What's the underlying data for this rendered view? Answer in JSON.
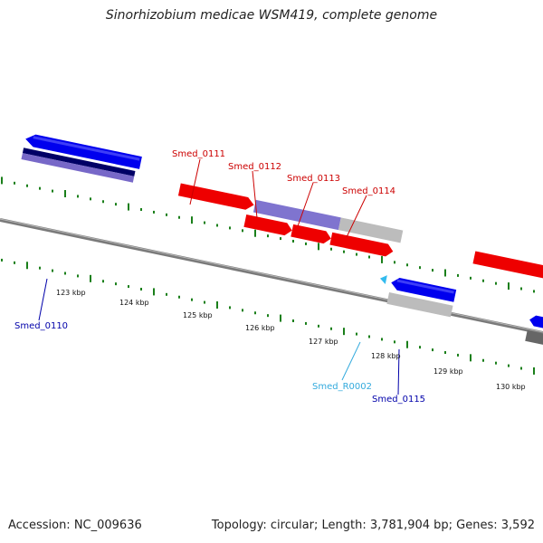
{
  "title": "Sinorhizobium medicae WSM419, complete genome",
  "footer": {
    "accession": "Accession: NC_009636",
    "summary": "Topology: circular; Length: 3,781,904 bp; Genes: 3,592"
  },
  "colors": {
    "forward_gene": "#ff0000",
    "reverse_gene": "#0000ee",
    "cds_forward": "#8b7fd0",
    "cds_reverse": "#6a5acd",
    "pseudo_gray": "#bdbdbd",
    "backbone": "#777777",
    "tick": "#1a7f1a",
    "label_red": "#cc0000",
    "label_blue": "#0000aa",
    "label_cyan": "#33aadd"
  },
  "ticks": [
    {
      "label": "123 kbp"
    },
    {
      "label": "124 kbp"
    },
    {
      "label": "125 kbp"
    },
    {
      "label": "126 kbp"
    },
    {
      "label": "127 kbp"
    },
    {
      "label": "128 kbp"
    },
    {
      "label": "129 kbp"
    },
    {
      "label": "130 kbp"
    }
  ],
  "gene_labels": [
    {
      "label": "Smed_0111"
    },
    {
      "label": "Smed_0112"
    },
    {
      "label": "Smed_0113"
    },
    {
      "label": "Smed_0114"
    },
    {
      "label": "Smed_0110"
    },
    {
      "label": "Smed_R0002"
    },
    {
      "label": "Smed_0115"
    }
  ]
}
